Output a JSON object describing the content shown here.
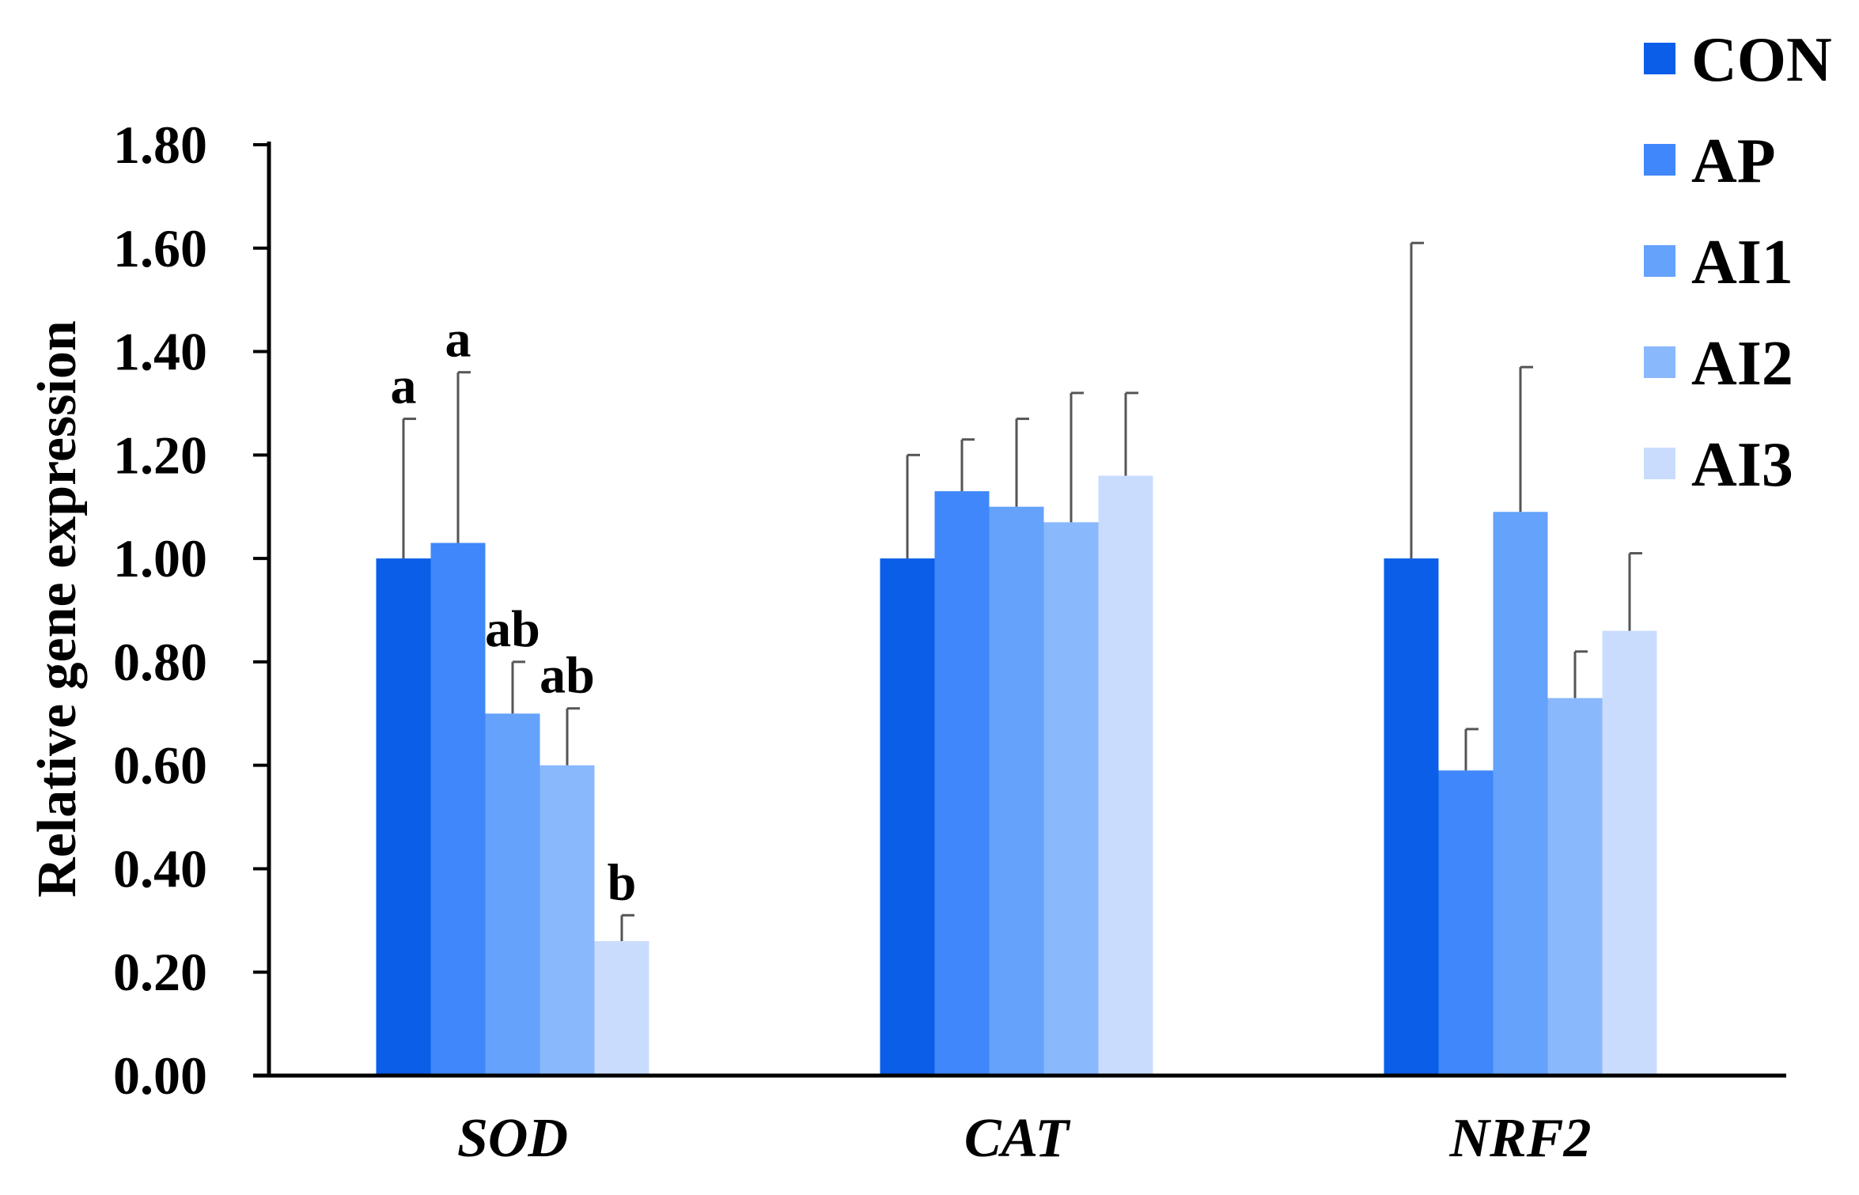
{
  "chart_data": {
    "type": "bar",
    "title": "",
    "xlabel": "",
    "ylabel": "Relative gene expression",
    "ylim": [
      0,
      1.8
    ],
    "yticks": [
      "0.00",
      "0.20",
      "0.40",
      "0.60",
      "0.80",
      "1.00",
      "1.20",
      "1.40",
      "1.60",
      "1.80"
    ],
    "grid": false,
    "legend_position": "top-right",
    "categories": [
      "SOD",
      "CAT",
      "NRF2"
    ],
    "series": [
      {
        "name": "CON",
        "color": "#0a5ee8",
        "values": [
          1.0,
          1.0,
          1.0
        ],
        "errors": [
          0.27,
          0.2,
          0.61
        ],
        "labels": [
          "a",
          "",
          ""
        ]
      },
      {
        "name": "AP",
        "color": "#3f87fa",
        "values": [
          1.03,
          1.13,
          0.59
        ],
        "errors": [
          0.33,
          0.1,
          0.08
        ],
        "labels": [
          "a",
          "",
          ""
        ]
      },
      {
        "name": "AI1",
        "color": "#64a2fb",
        "values": [
          0.7,
          1.1,
          1.09
        ],
        "errors": [
          0.1,
          0.17,
          0.28
        ],
        "labels": [
          "ab",
          "",
          ""
        ]
      },
      {
        "name": "AI2",
        "color": "#89b8fc",
        "values": [
          0.6,
          1.07,
          0.73
        ],
        "errors": [
          0.11,
          0.25,
          0.09
        ],
        "labels": [
          "ab",
          "",
          ""
        ]
      },
      {
        "name": "AI3",
        "color": "#c9dcfd",
        "values": [
          0.26,
          1.16,
          0.86
        ],
        "errors": [
          0.05,
          0.16,
          0.15
        ],
        "labels": [
          "b",
          "",
          ""
        ]
      }
    ]
  }
}
